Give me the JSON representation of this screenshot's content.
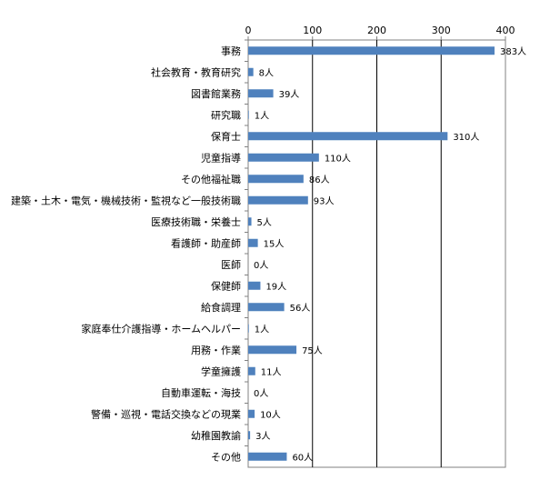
{
  "chart_data": {
    "type": "bar",
    "orientation": "horizontal",
    "categories": [
      "事務",
      "社会教育・教育研究",
      "図書館業務",
      "研究職",
      "保育士",
      "児童指導",
      "その他福祉職",
      "建築・土木・電気・機械技術・監視など一般技術職",
      "医療技術職・栄養士",
      "看護師・助産師",
      "医師",
      "保健師",
      "給食調理",
      "家庭奉仕介護指導・ホームヘルパー",
      "用務・作業",
      "学童擁護",
      "自動車運転・海技",
      "警備・巡視・電話交換などの現業",
      "幼稚園教諭",
      "その他"
    ],
    "values": [
      383,
      8,
      39,
      1,
      310,
      110,
      86,
      93,
      5,
      15,
      0,
      19,
      56,
      1,
      75,
      11,
      0,
      10,
      3,
      60
    ],
    "data_labels": [
      "383人",
      "8人",
      "39人",
      "1人",
      "310人",
      "110人",
      "86人",
      "93人",
      "5人",
      "15人",
      "0人",
      "19人",
      "56人",
      "1人",
      "75人",
      "11人",
      "0人",
      "10人",
      "3人",
      "60人"
    ],
    "xaxis": {
      "ticks": [
        0,
        100,
        200,
        300,
        400
      ],
      "tick_labels": [
        "0",
        "100",
        "200",
        "300",
        "400"
      ],
      "range": [
        0,
        400
      ],
      "position": "top"
    },
    "grid": true,
    "bar_color": "#4f81bd",
    "title": "",
    "xlabel": "",
    "ylabel": ""
  }
}
